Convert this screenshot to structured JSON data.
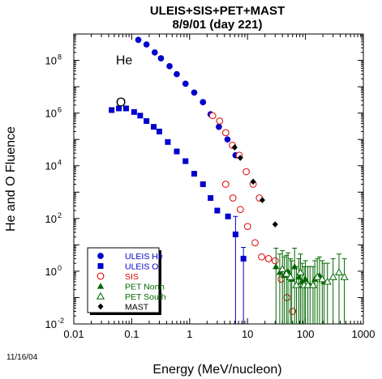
{
  "chart_data": {
    "type": "scatter",
    "title_line1": "ULEIS+SIS+PET+MAST",
    "title_line2": "8/9/01 (day 221)",
    "xlabel": "Energy (MeV/nucleon)",
    "ylabel": "He and O Fluence",
    "xscale": "log",
    "yscale": "log",
    "xlim": [
      0.01,
      1000
    ],
    "ylim": [
      0.01,
      1000000000
    ],
    "xticks": [
      {
        "v": 0.01,
        "label": "0.01"
      },
      {
        "v": 0.1,
        "label": "0.1"
      },
      {
        "v": 1,
        "label": "1"
      },
      {
        "v": 10,
        "label": "10"
      },
      {
        "v": 100,
        "label": "100"
      },
      {
        "v": 1000,
        "label": "1000"
      }
    ],
    "yticks": [
      {
        "v": 0.01,
        "base": "10",
        "exp": "-2"
      },
      {
        "v": 1,
        "base": "10",
        "exp": "0"
      },
      {
        "v": 100,
        "base": "10",
        "exp": "2"
      },
      {
        "v": 10000,
        "base": "10",
        "exp": "4"
      },
      {
        "v": 1000000,
        "base": "10",
        "exp": "6"
      },
      {
        "v": 100000000,
        "base": "10",
        "exp": "8"
      }
    ],
    "annotations": [
      {
        "text": "He",
        "x": 0.14,
        "y": 100000000
      },
      {
        "text": "O",
        "x": 0.14,
        "y": 2500000
      }
    ],
    "footer_date": "11/16/04",
    "legend_position": "bottom-left",
    "series": [
      {
        "name": "ULEIS He",
        "marker": "circle-filled",
        "color": "#0000cc",
        "points": [
          {
            "x": 0.13,
            "y": 600000000
          },
          {
            "x": 0.18,
            "y": 400000000
          },
          {
            "x": 0.25,
            "y": 200000000
          },
          {
            "x": 0.32,
            "y": 120000000
          },
          {
            "x": 0.45,
            "y": 60000000
          },
          {
            "x": 0.6,
            "y": 30000000
          },
          {
            "x": 0.85,
            "y": 13000000
          },
          {
            "x": 1.2,
            "y": 6000000
          },
          {
            "x": 1.7,
            "y": 2600000
          },
          {
            "x": 2.3,
            "y": 900000
          },
          {
            "x": 3.2,
            "y": 300000
          },
          {
            "x": 4.5,
            "y": 100000
          },
          {
            "x": 6.2,
            "y": 25000
          }
        ]
      },
      {
        "name": "ULEIS O",
        "marker": "square-filled",
        "color": "#0000cc",
        "points": [
          {
            "x": 0.045,
            "y": 1300000
          },
          {
            "x": 0.06,
            "y": 1500000
          },
          {
            "x": 0.08,
            "y": 1500000
          },
          {
            "x": 0.11,
            "y": 1100000
          },
          {
            "x": 0.14,
            "y": 800000
          },
          {
            "x": 0.18,
            "y": 500000
          },
          {
            "x": 0.24,
            "y": 300000
          },
          {
            "x": 0.3,
            "y": 200000
          },
          {
            "x": 0.42,
            "y": 80000
          },
          {
            "x": 0.6,
            "y": 35000
          },
          {
            "x": 0.85,
            "y": 15000
          },
          {
            "x": 1.2,
            "y": 5000
          },
          {
            "x": 1.7,
            "y": 2000
          },
          {
            "x": 2.3,
            "y": 600
          },
          {
            "x": 3.0,
            "y": 200
          },
          {
            "x": 4.6,
            "y": 120
          },
          {
            "x": 6.2,
            "y": 25,
            "err_hi": 120
          },
          {
            "x": 8.5,
            "y": 3,
            "err_hi": 8
          }
        ]
      },
      {
        "name": "SIS",
        "marker": "circle-open",
        "color": "#dd0000",
        "points": [
          {
            "x": 2.5,
            "y": 800000
          },
          {
            "x": 3.3,
            "y": 500000
          },
          {
            "x": 4.2,
            "y": 180000
          },
          {
            "x": 5.5,
            "y": 60000
          },
          {
            "x": 7.2,
            "y": 25000
          },
          {
            "x": 9.5,
            "y": 6000
          },
          {
            "x": 12.5,
            "y": 2000
          },
          {
            "x": 16,
            "y": 600
          },
          {
            "x": 4.2,
            "y": 2000
          },
          {
            "x": 5.6,
            "y": 600
          },
          {
            "x": 7.5,
            "y": 220
          },
          {
            "x": 10,
            "y": 50
          },
          {
            "x": 13.5,
            "y": 12
          },
          {
            "x": 17.5,
            "y": 3.5
          },
          {
            "x": 23,
            "y": 3
          },
          {
            "x": 30,
            "y": 2.5
          },
          {
            "x": 38,
            "y": 0.5
          },
          {
            "x": 48,
            "y": 0.1
          },
          {
            "x": 60,
            "y": 0.03
          }
        ]
      },
      {
        "name": "PET North",
        "marker": "triangle-filled",
        "color": "#006600",
        "points": [
          {
            "x": 31,
            "y": 1.5
          },
          {
            "x": 36,
            "y": 0.9
          },
          {
            "x": 43,
            "y": 0.7
          },
          {
            "x": 50,
            "y": 1.0
          },
          {
            "x": 58,
            "y": 0.5
          },
          {
            "x": 65,
            "y": 1.5
          },
          {
            "x": 77,
            "y": 0.6
          },
          {
            "x": 88,
            "y": 0.4
          },
          {
            "x": 100,
            "y": 0.5
          },
          {
            "x": 120,
            "y": 0.3
          },
          {
            "x": 145,
            "y": 0.5
          },
          {
            "x": 175,
            "y": 0.7
          },
          {
            "x": 210,
            "y": 0.4
          }
        ]
      },
      {
        "name": "PET South",
        "marker": "triangle-open",
        "color": "#006600",
        "points": [
          {
            "x": 40,
            "y": 1.2
          },
          {
            "x": 47,
            "y": 0.8
          },
          {
            "x": 55,
            "y": 0.6
          },
          {
            "x": 70,
            "y": 0.3
          },
          {
            "x": 82,
            "y": 0.9
          },
          {
            "x": 95,
            "y": 0.3
          },
          {
            "x": 110,
            "y": 0.3
          },
          {
            "x": 135,
            "y": 0.3
          },
          {
            "x": 160,
            "y": 0.6
          },
          {
            "x": 195,
            "y": 0.5
          },
          {
            "x": 240,
            "y": 0.4
          },
          {
            "x": 300,
            "y": 0.6
          },
          {
            "x": 380,
            "y": 0.9
          },
          {
            "x": 470,
            "y": 0.6
          }
        ]
      },
      {
        "name": "MAST",
        "marker": "diamond-filled",
        "color": "#000000",
        "points": [
          {
            "x": 6.0,
            "y": 50000
          },
          {
            "x": 7.5,
            "y": 20000
          },
          {
            "x": 12.5,
            "y": 2500
          },
          {
            "x": 18,
            "y": 500
          },
          {
            "x": 30,
            "y": 60
          }
        ]
      }
    ]
  }
}
